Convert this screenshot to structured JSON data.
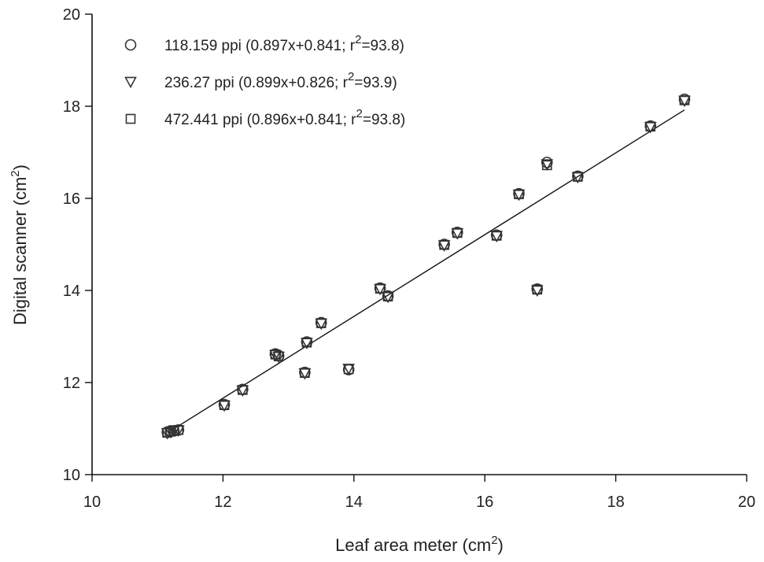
{
  "chart_data": {
    "type": "scatter",
    "xlabel": "Leaf area meter (cm",
    "xlabel_sup": "2",
    "xlabel_end": ")",
    "ylabel": "Digital scanner (cm",
    "ylabel_sup": "2",
    "ylabel_end": ")",
    "xlim": [
      10,
      20
    ],
    "ylim": [
      10,
      20
    ],
    "x_ticks": [
      10,
      12,
      14,
      16,
      18,
      20
    ],
    "y_ticks": [
      10,
      12,
      14,
      16,
      18,
      20
    ],
    "grid": false,
    "legend_position": "top-left",
    "fit_line": {
      "x": [
        11.2,
        19.05
      ],
      "y": [
        10.95,
        17.92
      ]
    },
    "series": [
      {
        "name": "118.159 ppi (0.897x+0.841; r",
        "name_sup": "2",
        "name_end": "=93.8)",
        "marker": "circle",
        "x": [
          11.15,
          11.2,
          11.25,
          11.32,
          12.02,
          12.3,
          12.8,
          12.85,
          13.25,
          13.28,
          13.5,
          13.92,
          14.4,
          14.52,
          15.38,
          15.58,
          16.18,
          16.52,
          16.8,
          16.95,
          17.42,
          18.53,
          19.05
        ],
        "y": [
          10.92,
          10.95,
          10.95,
          10.97,
          11.52,
          11.85,
          12.62,
          12.58,
          12.22,
          12.88,
          13.3,
          12.28,
          14.05,
          13.88,
          15.0,
          15.26,
          15.2,
          16.1,
          14.03,
          16.78,
          16.48,
          17.57,
          18.15
        ]
      },
      {
        "name": "236.27 ppi (0.899x+0.826; r",
        "name_sup": "2",
        "name_end": "=93.9)",
        "marker": "triangle-down",
        "x": [
          11.15,
          11.2,
          11.25,
          11.32,
          12.02,
          12.3,
          12.8,
          12.85,
          13.25,
          13.28,
          13.5,
          13.92,
          14.4,
          14.52,
          15.38,
          15.58,
          16.18,
          16.52,
          16.8,
          16.95,
          17.42,
          18.53,
          19.05
        ],
        "y": [
          10.9,
          10.93,
          10.95,
          10.96,
          11.5,
          11.83,
          12.6,
          12.56,
          12.2,
          12.86,
          13.28,
          12.3,
          14.03,
          13.86,
          14.98,
          15.24,
          15.18,
          16.08,
          14.0,
          16.74,
          16.46,
          17.55,
          18.12
        ]
      },
      {
        "name": "472.441 ppi (0.896x+0.841; r",
        "name_sup": "2",
        "name_end": "=93.8)",
        "marker": "square",
        "x": [
          11.15,
          11.2,
          11.25,
          11.32,
          12.02,
          12.3,
          12.8,
          12.85,
          13.25,
          13.28,
          13.5,
          13.92,
          14.4,
          14.52,
          15.38,
          15.58,
          16.18,
          16.52,
          16.8,
          16.95,
          17.42,
          18.53,
          19.05
        ],
        "y": [
          10.91,
          10.94,
          10.95,
          10.97,
          11.51,
          11.84,
          12.61,
          12.57,
          12.21,
          12.87,
          13.29,
          12.29,
          14.04,
          13.87,
          14.99,
          15.25,
          15.19,
          16.09,
          14.02,
          16.72,
          16.47,
          17.56,
          18.13
        ]
      }
    ]
  }
}
